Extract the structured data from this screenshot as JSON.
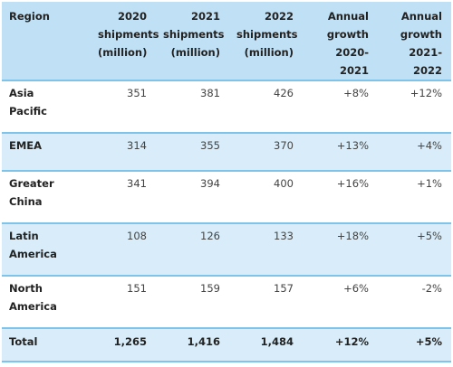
{
  "table": {
    "headers": {
      "region": "Region",
      "y2020": [
        "2020",
        "shipments",
        "(million)"
      ],
      "y2021": [
        "2021",
        "shipments",
        "(million)"
      ],
      "y2022": [
        "2022",
        "shipments",
        "(million)"
      ],
      "g2021": [
        "Annual",
        "growth",
        "2020-2021"
      ],
      "g2022": [
        "Annual",
        "growth",
        "2021-2022"
      ]
    },
    "rows": [
      {
        "region": [
          "Asia",
          "Pacific"
        ],
        "y2020": "351",
        "y2021": "381",
        "y2022": "426",
        "g2021": "+8%",
        "g2022": "+12%"
      },
      {
        "region": [
          "EMEA"
        ],
        "y2020": "314",
        "y2021": "355",
        "y2022": "370",
        "g2021": "+13%",
        "g2022": "+4%"
      },
      {
        "region": [
          "Greater",
          "China"
        ],
        "y2020": "341",
        "y2021": "394",
        "y2022": "400",
        "g2021": "+16%",
        "g2022": "+1%"
      },
      {
        "region": [
          "Latin",
          "America"
        ],
        "y2020": "108",
        "y2021": "126",
        "y2022": "133",
        "g2021": "+18%",
        "g2022": "+5%"
      },
      {
        "region": [
          "North",
          "America"
        ],
        "y2020": "151",
        "y2021": "159",
        "y2022": "157",
        "g2021": "+6%",
        "g2022": "-2%"
      }
    ],
    "total": {
      "region": "Total",
      "y2020": "1,265",
      "y2021": "1,416",
      "y2022": "1,484",
      "g2021": "+12%",
      "g2022": "+5%"
    }
  },
  "colors": {
    "header_bg": "#bfe0f5",
    "shaded_row_bg": "#d8edf9",
    "rule": "#7ec4ea"
  }
}
